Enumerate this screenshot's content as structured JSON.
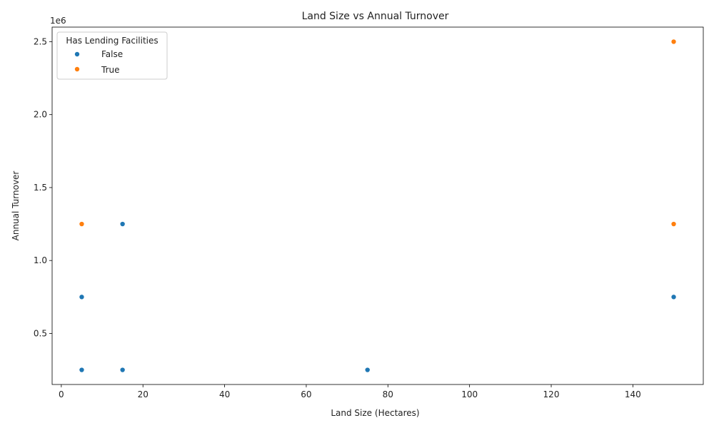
{
  "chart_data": {
    "type": "scatter",
    "title": "Land Size vs Annual Turnover",
    "xlabel": "Land Size (Hectares)",
    "ylabel": "Annual Turnover",
    "y_offset_label": "1e6",
    "xlim": [
      -2.25,
      157.25
    ],
    "ylim": [
      150000,
      2600000
    ],
    "x_ticks": [
      0,
      20,
      40,
      60,
      80,
      100,
      120,
      140
    ],
    "x_tick_labels": [
      "0",
      "20",
      "40",
      "60",
      "80",
      "100",
      "120",
      "140"
    ],
    "y_ticks": [
      500000,
      1000000,
      1500000,
      2000000,
      2500000
    ],
    "y_tick_labels": [
      "0.5",
      "1.0",
      "1.5",
      "2.0",
      "2.5"
    ],
    "grid": false,
    "legend": {
      "title": "Has Lending Facilities",
      "placement": "top-left"
    },
    "series": [
      {
        "name": "False",
        "color": "#1f77b4",
        "points": [
          {
            "x": 5,
            "y": 750000
          },
          {
            "x": 5,
            "y": 250000
          },
          {
            "x": 15,
            "y": 1250000
          },
          {
            "x": 15,
            "y": 250000
          },
          {
            "x": 75,
            "y": 250000
          },
          {
            "x": 150,
            "y": 750000
          }
        ]
      },
      {
        "name": "True",
        "color": "#ff7f0e",
        "points": [
          {
            "x": 5,
            "y": 1250000
          },
          {
            "x": 150,
            "y": 2500000
          },
          {
            "x": 150,
            "y": 1250000
          }
        ]
      }
    ]
  }
}
